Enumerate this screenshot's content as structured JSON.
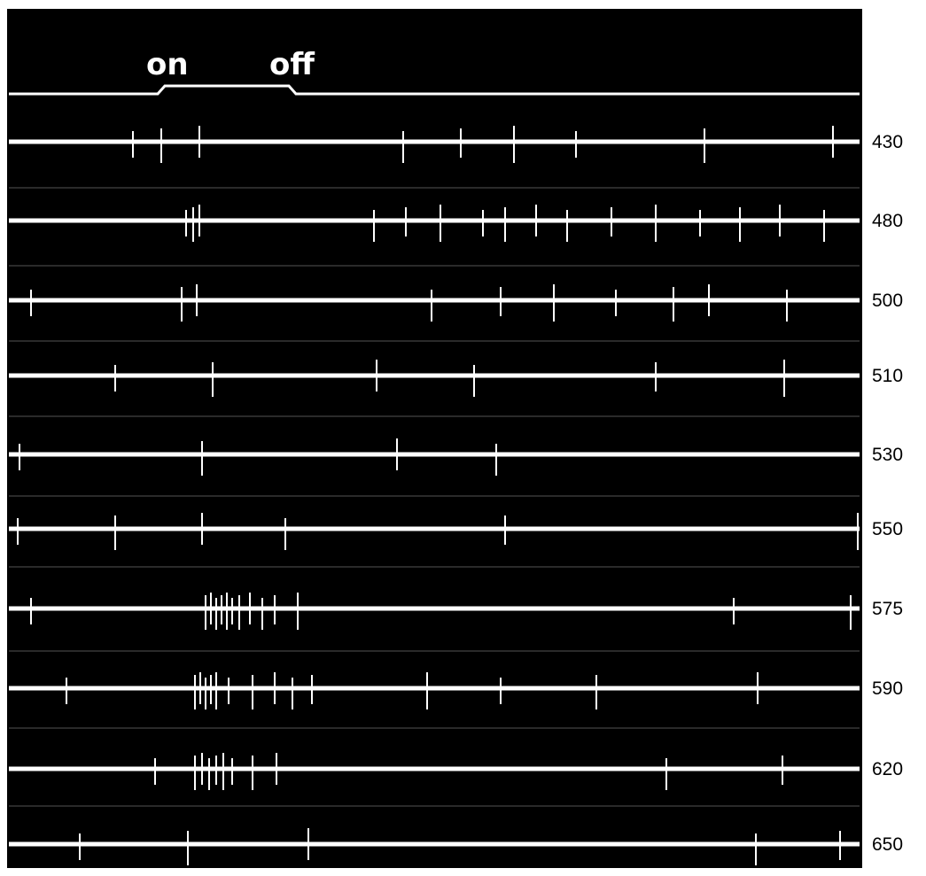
{
  "stimulus": {
    "on_label": "on",
    "off_label": "off"
  },
  "traces": [
    {
      "label": "430",
      "spikes": [
        150,
        182,
        225,
        455,
        520,
        580,
        650,
        795,
        940
      ]
    },
    {
      "label": "480",
      "spikes": [
        210,
        218,
        225,
        422,
        458,
        497,
        545,
        570,
        605,
        640,
        690,
        740,
        790,
        835,
        880,
        930
      ]
    },
    {
      "label": "500",
      "spikes": [
        35,
        205,
        222,
        487,
        565,
        625,
        695,
        760,
        800,
        888
      ]
    },
    {
      "label": "510",
      "spikes": [
        130,
        240,
        425,
        535,
        740,
        885
      ]
    },
    {
      "label": "530",
      "spikes": [
        22,
        228,
        448,
        560
      ]
    },
    {
      "label": "550",
      "spikes": [
        20,
        130,
        228,
        322,
        570,
        968
      ]
    },
    {
      "label": "575",
      "spikes": [
        35,
        232,
        238,
        244,
        250,
        256,
        262,
        270,
        282,
        296,
        310,
        336,
        828,
        960
      ]
    },
    {
      "label": "590",
      "spikes": [
        75,
        220,
        226,
        232,
        238,
        244,
        258,
        285,
        310,
        330,
        352,
        482,
        565,
        673,
        855
      ]
    },
    {
      "label": "620",
      "spikes": [
        175,
        220,
        228,
        236,
        244,
        252,
        262,
        285,
        312,
        752,
        883
      ]
    },
    {
      "label": "650",
      "spikes": [
        90,
        212,
        348,
        853,
        948
      ]
    }
  ],
  "colors": {
    "background": "#000000",
    "trace": "#ffffff",
    "page": "#ffffff",
    "label": "#000000"
  }
}
